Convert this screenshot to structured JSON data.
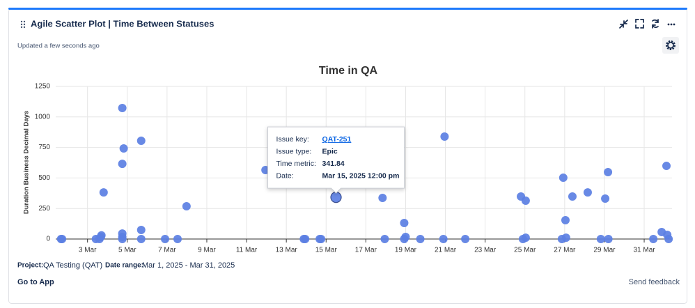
{
  "header": {
    "title": "Agile Scatter Plot | Time Between Statuses",
    "updated": "Updated a few seconds ago"
  },
  "chart_data": {
    "type": "scatter",
    "title": "Time in QA",
    "y_label": "Duration Business Decimal Days",
    "x": [
      1.67,
      1.72,
      3.42,
      3.6,
      3.67,
      3.7,
      3.81,
      4.75,
      4.75,
      4.82,
      4.75,
      4.75,
      4.75,
      5.7,
      5.7,
      5.7,
      6.9,
      7.53,
      7.98,
      11.95,
      13.88,
      13.95,
      14.68,
      14.75,
      15.5,
      17.84,
      17.95,
      18.93,
      18.93,
      19.0,
      19.74,
      20.9,
      20.96,
      22.0,
      24.8,
      24.9,
      25.04,
      25.04,
      26.86,
      26.93,
      27.04,
      27.07,
      27.39,
      28.16,
      28.82,
      29.04,
      29.18,
      29.2,
      31.46,
      31.88,
      32.12,
      32.16,
      32.23
    ],
    "values": [
      0,
      0,
      0,
      0,
      17,
      30,
      382,
      1073,
      616,
      742,
      45,
      17,
      0,
      805,
      74,
      0,
      0,
      0,
      268,
      565,
      0,
      0,
      0,
      0,
      341.84,
      337,
      0,
      131,
      0,
      17,
      0,
      0,
      839,
      0,
      348,
      0,
      314,
      11,
      0,
      502,
      154,
      11,
      348,
      382,
      0,
      331,
      548,
      0,
      0,
      57,
      599,
      34,
      0
    ],
    "color": "#5b7fe3",
    "xlim": [
      1.4,
      32.4
    ],
    "ylim": [
      0,
      1250
    ],
    "xticks": [
      {
        "value": 3,
        "label": "3 Mar"
      },
      {
        "value": 5,
        "label": "5 Mar"
      },
      {
        "value": 7,
        "label": "7 Mar"
      },
      {
        "value": 9,
        "label": "9 Mar"
      },
      {
        "value": 11,
        "label": "11 Mar"
      },
      {
        "value": 13,
        "label": "13 Mar"
      },
      {
        "value": 15,
        "label": "15 Mar"
      },
      {
        "value": 17,
        "label": "17 Mar"
      },
      {
        "value": 19,
        "label": "19 Mar"
      },
      {
        "value": 21,
        "label": "21 Mar"
      },
      {
        "value": 23,
        "label": "23 Mar"
      },
      {
        "value": 25,
        "label": "25 Mar"
      },
      {
        "value": 27,
        "label": "27 Mar"
      },
      {
        "value": 29,
        "label": "29 Mar"
      },
      {
        "value": 31,
        "label": "31 Mar"
      }
    ],
    "yticks": [
      0,
      250,
      500,
      750,
      1000,
      1250
    ],
    "grid": true
  },
  "tooltip": {
    "rows": [
      {
        "label": "Issue key:",
        "value": "QAT-251"
      },
      {
        "label": "Issue type:",
        "value": "Epic"
      },
      {
        "label": "Time metric:"
      },
      {
        "label": "Date:",
        "value": "Mar 15, 2025 12:00 pm"
      }
    ]
  },
  "footer": {
    "project_label": "Project:",
    "project": "QA Testing (QAT)",
    "range_label": "Date range:",
    "range": "Mar 1, 2025 - Mar 31, 2025",
    "app_link": "Go to App",
    "feedback": "Send feedback"
  }
}
